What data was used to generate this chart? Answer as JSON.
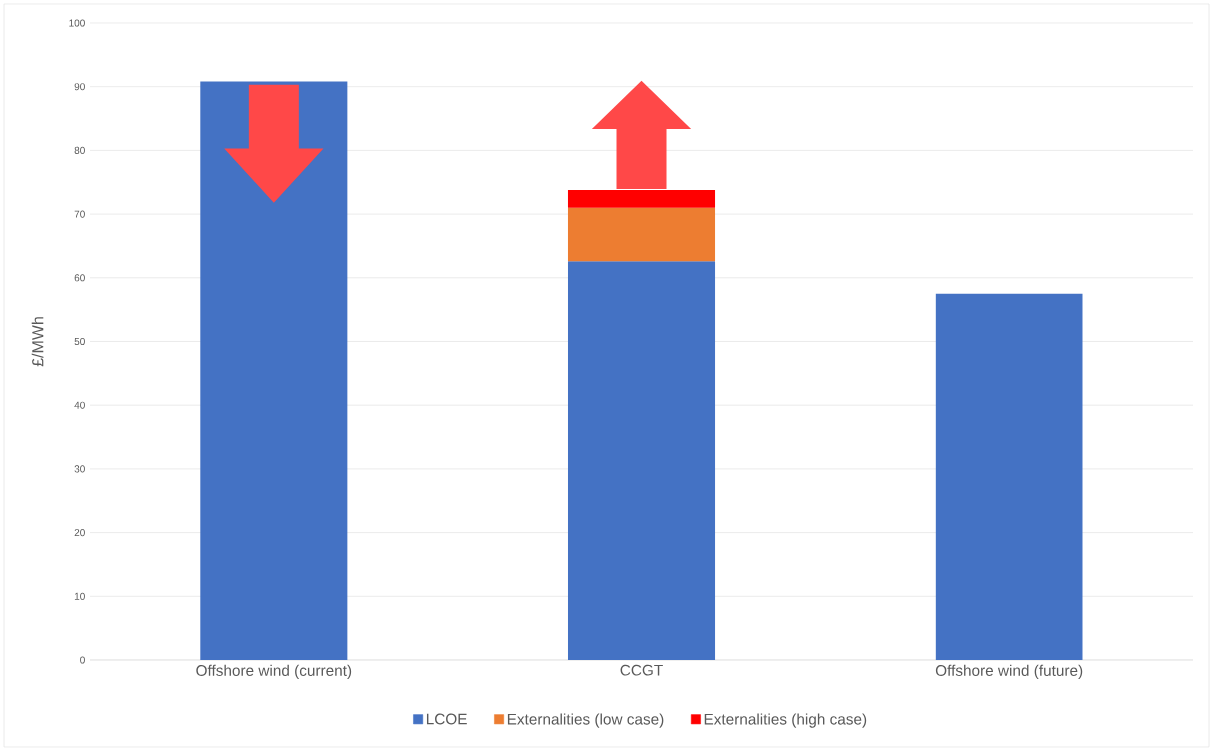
{
  "chart_data": {
    "type": "bar",
    "stacked": true,
    "ylabel": "£/MWh",
    "categories": [
      "Offshore wind (current)",
      "CCGT",
      "Offshore wind (future)"
    ],
    "series": [
      {
        "name": "LCOE",
        "color": "#4472c4",
        "values": [
          90.8,
          62.6,
          57.5
        ]
      },
      {
        "name": "Externalities (low case)",
        "color": "#ed7d31",
        "values": [
          null,
          8.4,
          null
        ]
      },
      {
        "name": "Externalities (high case)",
        "color": "#ff0000",
        "values": [
          null,
          2.8,
          null
        ]
      }
    ],
    "ylim": [
      0,
      100
    ],
    "yticks": [
      0,
      10,
      20,
      30,
      40,
      50,
      60,
      70,
      80,
      90,
      100
    ],
    "grid": "y",
    "legend": "bottom"
  }
}
